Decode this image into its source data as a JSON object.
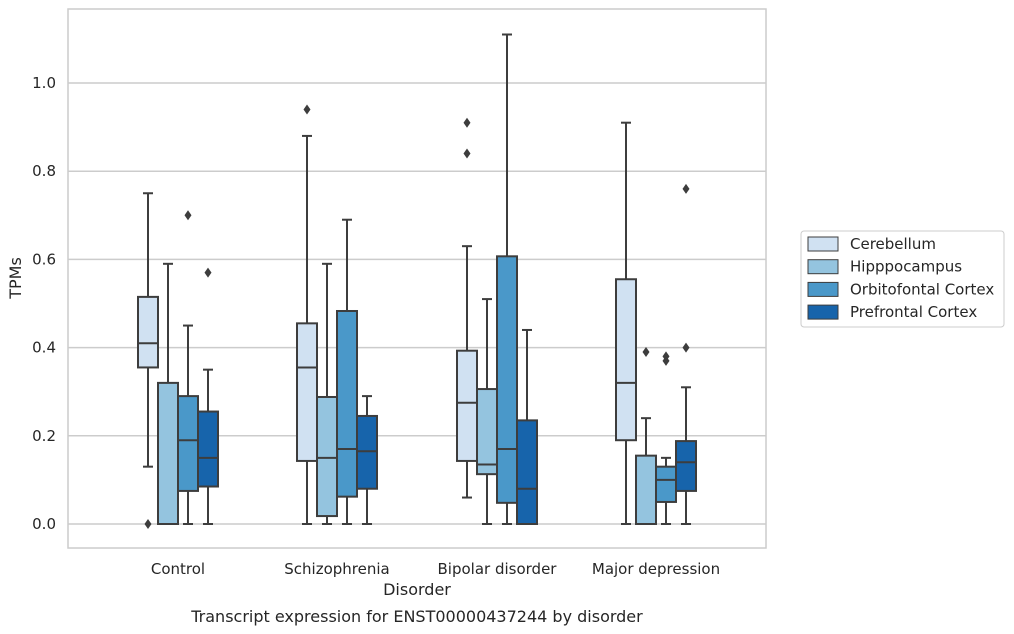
{
  "chart_data": {
    "type": "box",
    "title": "",
    "caption": "Transcript expression for ENST00000437244 by disorder",
    "xlabel": "Disorder",
    "ylabel": "TPMs",
    "ylim": [
      -0.055,
      1.17
    ],
    "yticks": [
      0.0,
      0.2,
      0.4,
      0.6,
      0.8,
      1.0
    ],
    "ytick_labels": [
      "0.0",
      "0.2",
      "0.4",
      "0.6",
      "0.8",
      "1.0"
    ],
    "grid": "horizontal",
    "legend_position": "right-outside",
    "categories": [
      "Control",
      "Schizophrenia",
      "Bipolar disorder",
      "Major depression"
    ],
    "series": [
      {
        "name": "Cerebellum",
        "color": "#d0e1f2",
        "boxes": [
          {
            "whislo": 0.13,
            "q1": 0.355,
            "med": 0.41,
            "q3": 0.515,
            "whishi": 0.75,
            "fliers": [
              0.0
            ]
          },
          {
            "whislo": 0.0,
            "q1": 0.143,
            "med": 0.355,
            "q3": 0.455,
            "whishi": 0.88,
            "fliers": [
              0.94
            ]
          },
          {
            "whislo": 0.06,
            "q1": 0.143,
            "med": 0.275,
            "q3": 0.393,
            "whishi": 0.63,
            "fliers": [
              0.84,
              0.91
            ]
          },
          {
            "whislo": 0.0,
            "q1": 0.19,
            "med": 0.32,
            "q3": 0.555,
            "whishi": 0.91,
            "fliers": []
          }
        ]
      },
      {
        "name": "Hipppocampus",
        "color": "#94c4df",
        "boxes": [
          {
            "whislo": 0.0,
            "q1": 0.0,
            "med": 0.0,
            "q3": 0.32,
            "whishi": 0.59,
            "fliers": []
          },
          {
            "whislo": 0.0,
            "q1": 0.018,
            "med": 0.15,
            "q3": 0.288,
            "whishi": 0.59,
            "fliers": []
          },
          {
            "whislo": 0.0,
            "q1": 0.113,
            "med": 0.135,
            "q3": 0.306,
            "whishi": 0.51,
            "fliers": []
          },
          {
            "whislo": 0.0,
            "q1": 0.0,
            "med": 0.0,
            "q3": 0.155,
            "whishi": 0.24,
            "fliers": [
              0.39
            ]
          }
        ]
      },
      {
        "name": "Orbitofontal Cortex",
        "color": "#4a98c9",
        "boxes": [
          {
            "whislo": 0.0,
            "q1": 0.075,
            "med": 0.19,
            "q3": 0.29,
            "whishi": 0.45,
            "fliers": [
              0.7
            ]
          },
          {
            "whislo": 0.0,
            "q1": 0.062,
            "med": 0.17,
            "q3": 0.483,
            "whishi": 0.69,
            "fliers": []
          },
          {
            "whislo": 0.0,
            "q1": 0.048,
            "med": 0.17,
            "q3": 0.607,
            "whishi": 1.11,
            "fliers": []
          },
          {
            "whislo": 0.0,
            "q1": 0.05,
            "med": 0.1,
            "q3": 0.13,
            "whishi": 0.15,
            "fliers": [
              0.37,
              0.38
            ]
          }
        ]
      },
      {
        "name": "Prefrontal Cortex",
        "color": "#1764ab",
        "boxes": [
          {
            "whislo": 0.0,
            "q1": 0.085,
            "med": 0.15,
            "q3": 0.255,
            "whishi": 0.35,
            "fliers": [
              0.57
            ]
          },
          {
            "whislo": 0.0,
            "q1": 0.08,
            "med": 0.165,
            "q3": 0.245,
            "whishi": 0.29,
            "fliers": []
          },
          {
            "whislo": 0.0,
            "q1": 0.0,
            "med": 0.08,
            "q3": 0.235,
            "whishi": 0.44,
            "fliers": []
          },
          {
            "whislo": 0.0,
            "q1": 0.075,
            "med": 0.14,
            "q3": 0.188,
            "whishi": 0.31,
            "fliers": [
              0.4,
              0.76
            ]
          }
        ]
      }
    ]
  }
}
